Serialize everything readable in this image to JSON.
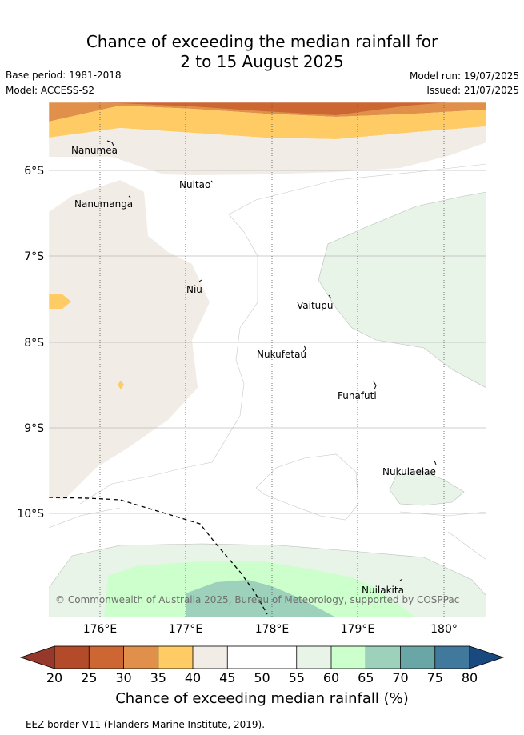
{
  "header": {
    "title_line1": "Chance of exceeding the median rainfall for",
    "title_line2": "2 to 15 August 2025",
    "base_period": "Base period: 1981-2018",
    "model": "Model: ACCESS-S2",
    "model_run": "Model run: 19/07/2025",
    "issued": "Issued: 21/07/2025"
  },
  "map": {
    "lon_labels": [
      "176°E",
      "177°E",
      "178°E",
      "179°E",
      "180°"
    ],
    "lat_labels": [
      "6°S",
      "7°S",
      "8°S",
      "9°S",
      "10°S"
    ],
    "places": [
      {
        "name": "Nanumea"
      },
      {
        "name": "Nuitao"
      },
      {
        "name": "Nanumanga"
      },
      {
        "name": "Niu"
      },
      {
        "name": "Vaitupu"
      },
      {
        "name": "Nukufetau"
      },
      {
        "name": "Funafuti"
      },
      {
        "name": "Nukulaelae"
      },
      {
        "name": "Nuilakita"
      }
    ],
    "copyright": "© Commonwealth of Australia 2025, Bureau of Meteorology, supported by COSPPac"
  },
  "colorbar": {
    "ticks": [
      "20",
      "25",
      "30",
      "35",
      "40",
      "45",
      "50",
      "55",
      "60",
      "65",
      "70",
      "75",
      "80"
    ],
    "colors": [
      "#b34a29",
      "#cc6633",
      "#e0904a",
      "#fecb64",
      "#f1ece6",
      "#ffffff",
      "#ffffff",
      "#e8f4e8",
      "#ccffcc",
      "#9dd1bb",
      "#6ba6a6",
      "#41799c"
    ],
    "low_extend_color": "#96382b",
    "high_extend_color": "#18497f",
    "label": "Chance of exceeding median rainfall (%)"
  },
  "legend": {
    "eez_text": "-- EEZ border V11 (Flanders Marine Institute, 2019)."
  }
}
